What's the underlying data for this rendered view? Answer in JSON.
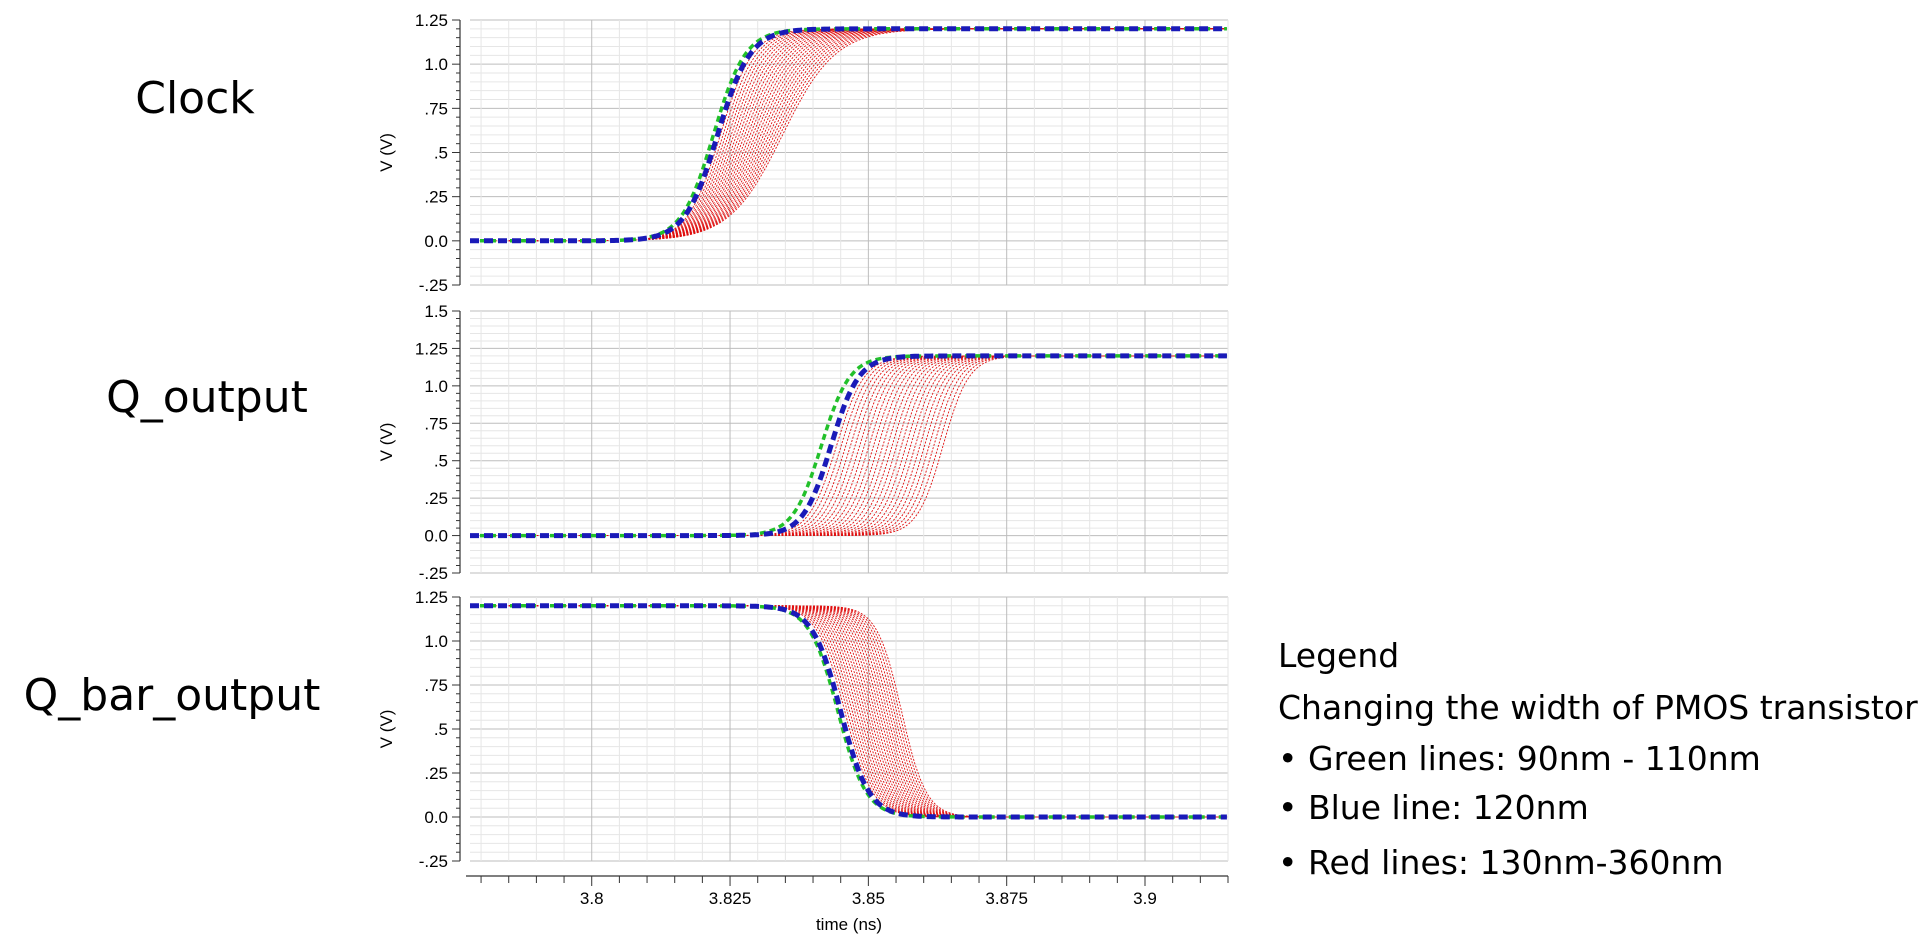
{
  "chart_data": {
    "type": "line",
    "xlabel": "time (ns)",
    "xlim": [
      3.778,
      3.915
    ],
    "x_ticks": [
      "3.8",
      "3.825",
      "3.85",
      "3.875",
      "3.9"
    ],
    "colors": {
      "green": "#22c02a",
      "blue": "#1a1ab8",
      "red": "#e01010"
    },
    "panels": [
      {
        "label": "Clock",
        "ylabel": "V (V)",
        "ylim": [
          -0.25,
          1.25
        ],
        "y_ticks": [
          "1.25",
          "1.0",
          ".75",
          ".5",
          ".25",
          "0.0",
          "-.25"
        ],
        "transition": "rise",
        "low": 0.0,
        "high": 1.2,
        "series": [
          {
            "group": "Green lines",
            "start": 3.809,
            "end": 3.835
          },
          {
            "group": "Blue line",
            "start": 3.8095,
            "end": 3.836
          },
          {
            "group": "Red lines",
            "start_range": [
              3.81,
              3.813
            ],
            "end_range": [
              3.8365,
              3.856
            ],
            "count": 24
          }
        ]
      },
      {
        "label": "Q_output",
        "ylabel": "V (V)",
        "ylim": [
          -0.25,
          1.5
        ],
        "y_ticks": [
          "1.5",
          "1.25",
          "1.0",
          ".75",
          ".5",
          ".25",
          "0.0",
          "-.25"
        ],
        "transition": "rise",
        "low": 0.0,
        "high": 1.2,
        "series": [
          {
            "group": "Green lines",
            "start": 3.83,
            "end": 3.853
          },
          {
            "group": "Blue line",
            "start": 3.832,
            "end": 3.8545
          },
          {
            "group": "Red lines",
            "start_range": [
              3.833,
              3.853
            ],
            "end_range": [
              3.8555,
              3.874
            ],
            "count": 24
          }
        ]
      },
      {
        "label": "Q_bar_output",
        "ylabel": "V (V)",
        "ylim": [
          -0.25,
          1.25
        ],
        "y_ticks": [
          "1.25",
          "1.0",
          ".75",
          ".5",
          ".25",
          "0.0",
          "-.25"
        ],
        "transition": "fall",
        "low": 0.0,
        "high": 1.2,
        "series": [
          {
            "group": "Green lines",
            "start": 3.833,
            "end": 3.856
          },
          {
            "group": "Blue line",
            "start": 3.8335,
            "end": 3.8565
          },
          {
            "group": "Red lines",
            "start_range": [
              3.8345,
              3.846
            ],
            "end_range": [
              3.857,
              3.866
            ],
            "count": 24
          }
        ]
      }
    ]
  },
  "legend": {
    "title": "Legend",
    "subtitle": "Changing the width of PMOS transistor",
    "items": [
      "Green lines: 90nm - 110nm",
      "Blue line: 120nm",
      "Red lines: 130nm-360nm"
    ]
  }
}
